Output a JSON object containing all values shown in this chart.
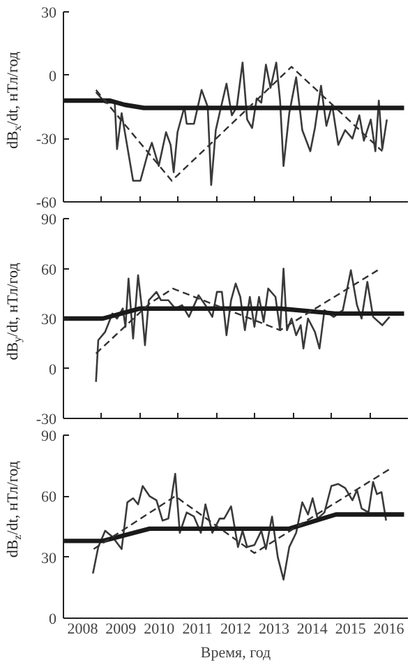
{
  "chart_data": [
    {
      "type": "line",
      "ylabel": "dB$_{x}$/dt, нТл/год",
      "xlim": [
        2008,
        2017
      ],
      "ylim": [
        -60,
        30
      ],
      "yticks": [
        -60,
        -30,
        0,
        30
      ],
      "xticks": [
        {
          "value": 2009,
          "label": null
        },
        {
          "value": 2010,
          "label": null
        },
        {
          "value": 2011,
          "label": null
        },
        {
          "value": 2012,
          "label": null
        },
        {
          "value": 2013,
          "label": null
        },
        {
          "value": 2014,
          "label": null
        },
        {
          "value": 2015,
          "label": null
        },
        {
          "value": 2016,
          "label": null
        }
      ],
      "tick_labels": "y",
      "grid": false,
      "series": [
        {
          "color": "#3a3a3a",
          "line_style": "solid",
          "x": [
            2008.85,
            2009.09,
            2009.34,
            2009.4,
            2009.52,
            2009.82,
            2010.01,
            2010.19,
            2010.31,
            2010.49,
            2010.68,
            2010.8,
            2010.88,
            2010.98,
            2011.16,
            2011.22,
            2011.41,
            2011.61,
            2011.77,
            2011.86,
            2011.98,
            2012.08,
            2012.26,
            2012.4,
            2012.53,
            2012.68,
            2012.8,
            2012.93,
            2013.05,
            2013.17,
            2013.29,
            2013.41,
            2013.56,
            2013.66,
            2013.75,
            2013.9,
            2014.08,
            2014.24,
            2014.45,
            2014.57,
            2014.73,
            2014.87,
            2015.02,
            2015.18,
            2015.36,
            2015.55,
            2015.73,
            2015.85,
            2016.03,
            2016.15,
            2016.24,
            2016.33,
            2016.45
          ],
          "values": [
            -8,
            -13,
            -13,
            -35,
            -18,
            -50,
            -50,
            -38,
            -32,
            -43,
            -27,
            -33,
            -46,
            -27,
            -15,
            -23,
            -23,
            -7,
            -15,
            -52,
            -26,
            -18,
            -4,
            -19,
            -15,
            6,
            -21,
            -25,
            -11,
            -13,
            5,
            -6,
            6,
            -12,
            -43,
            -18,
            -1,
            -26,
            -36,
            -25,
            -5,
            -24,
            -14,
            -33,
            -26,
            -30,
            -19,
            -31,
            -21,
            -36,
            -12,
            -35,
            -21
          ]
        },
        {
          "color": "#1a1a1a",
          "line_style": "solid",
          "x": [
            2008.0,
            2009.2,
            2009.6,
            2010.1,
            2016.9
          ],
          "values": [
            -12,
            -12,
            -14,
            -15.5,
            -15.5
          ]
        },
        {
          "color": "#333333",
          "line_style": "dashed",
          "x": [
            2008.85,
            2010.83,
            2013.96,
            2016.33
          ],
          "values": [
            -7,
            -50,
            4,
            -36
          ]
        }
      ]
    },
    {
      "type": "line",
      "ylabel": "dB$_{y}$/dt, нТл/год",
      "xlim": [
        2008,
        2017
      ],
      "ylim": [
        -30,
        90
      ],
      "yticks": [
        -30,
        0,
        30,
        60,
        90
      ],
      "xticks": [
        {
          "value": 2009,
          "label": null
        },
        {
          "value": 2010,
          "label": null
        },
        {
          "value": 2011,
          "label": null
        },
        {
          "value": 2012,
          "label": null
        },
        {
          "value": 2013,
          "label": null
        },
        {
          "value": 2014,
          "label": null
        },
        {
          "value": 2015,
          "label": null
        },
        {
          "value": 2016,
          "label": null
        }
      ],
      "tick_labels": "y",
      "grid": false,
      "series": [
        {
          "color": "#3a3a3a",
          "line_style": "solid",
          "x": [
            2008.85,
            2008.91,
            2009.09,
            2009.28,
            2009.4,
            2009.55,
            2009.62,
            2009.7,
            2009.82,
            2009.95,
            2010.04,
            2010.13,
            2010.23,
            2010.43,
            2010.55,
            2010.74,
            2010.92,
            2011.1,
            2011.28,
            2011.53,
            2011.71,
            2011.89,
            2012.01,
            2012.14,
            2012.26,
            2012.38,
            2012.5,
            2012.62,
            2012.74,
            2012.87,
            2012.99,
            2013.11,
            2013.23,
            2013.35,
            2013.54,
            2013.66,
            2013.75,
            2013.84,
            2013.96,
            2014.08,
            2014.2,
            2014.27,
            2014.39,
            2014.57,
            2014.69,
            2014.82,
            2015.06,
            2015.3,
            2015.51,
            2015.67,
            2015.79,
            2015.94,
            2016.09,
            2016.33,
            2016.52
          ],
          "values": [
            -8,
            17,
            22,
            33,
            30,
            36,
            25,
            54,
            18,
            56,
            38,
            14,
            41,
            46,
            41,
            41,
            36,
            38,
            31,
            44,
            38,
            31,
            46,
            46,
            20,
            41,
            51,
            43,
            23,
            43,
            25,
            43,
            28,
            48,
            43,
            23,
            60,
            23,
            30,
            20,
            26,
            12,
            30,
            22,
            12,
            35,
            31,
            35,
            59,
            38,
            30,
            52,
            31,
            26,
            31
          ]
        },
        {
          "color": "#1a1a1a",
          "line_style": "solid",
          "x": [
            2008.0,
            2009.03,
            2010.0,
            2013.66,
            2015.1,
            2016.9
          ],
          "values": [
            30,
            30,
            36,
            36,
            33,
            33
          ]
        },
        {
          "color": "#333333",
          "line_style": "dashed",
          "x": [
            2008.85,
            2010.25,
            2010.86,
            2013.66,
            2016.21
          ],
          "values": [
            9,
            39,
            48,
            23,
            59
          ]
        }
      ]
    },
    {
      "type": "line",
      "xlabel": "Время, год",
      "ylabel": "dB$_{z}$/dt, нТл/год",
      "xlim": [
        2008,
        2017
      ],
      "ylim": [
        0,
        90
      ],
      "yticks": [
        0,
        30,
        60,
        90
      ],
      "xticks": [
        {
          "value": 2008.5,
          "label": "2008"
        },
        {
          "value": 2009.5,
          "label": "2009"
        },
        {
          "value": 2010.5,
          "label": "2010"
        },
        {
          "value": 2011.5,
          "label": "2011"
        },
        {
          "value": 2012.5,
          "label": "2012"
        },
        {
          "value": 2013.5,
          "label": "2013"
        },
        {
          "value": 2014.5,
          "label": "2014"
        },
        {
          "value": 2015.5,
          "label": "2015"
        },
        {
          "value": 2016.5,
          "label": "2016"
        }
      ],
      "grid": false,
      "series": [
        {
          "color": "#3a3a3a",
          "line_style": "solid",
          "x": [
            2008.77,
            2008.91,
            2009.09,
            2009.28,
            2009.52,
            2009.67,
            2009.82,
            2009.95,
            2010.07,
            2010.25,
            2010.43,
            2010.59,
            2010.74,
            2010.92,
            2011.04,
            2011.22,
            2011.41,
            2011.59,
            2011.71,
            2011.89,
            2012.08,
            2012.2,
            2012.38,
            2012.56,
            2012.68,
            2012.8,
            2012.99,
            2013.17,
            2013.29,
            2013.45,
            2013.6,
            2013.75,
            2013.9,
            2014.08,
            2014.24,
            2014.39,
            2014.51,
            2014.64,
            2014.82,
            2015.0,
            2015.18,
            2015.36,
            2015.55,
            2015.67,
            2015.79,
            2015.97,
            2016.09,
            2016.19,
            2016.31,
            2016.43
          ],
          "values": [
            22,
            35,
            43,
            40,
            34,
            57,
            59,
            56,
            65,
            60,
            58,
            48,
            49,
            71,
            42,
            52,
            50,
            42,
            56,
            42,
            49,
            49,
            55,
            35,
            43,
            35,
            36,
            43,
            34,
            50,
            30,
            19,
            35,
            42,
            57,
            51,
            59,
            49,
            52,
            65,
            66,
            64,
            58,
            63,
            54,
            52,
            67,
            61,
            62,
            48
          ]
        },
        {
          "color": "#1a1a1a",
          "line_style": "solid",
          "x": [
            2008.0,
            2009.03,
            2010.25,
            2013.9,
            2015.12,
            2016.9
          ],
          "values": [
            38,
            38,
            44,
            44,
            51,
            51
          ]
        },
        {
          "color": "#333333",
          "line_style": "dashed",
          "x": [
            2008.79,
            2010.92,
            2012.99,
            2016.58
          ],
          "values": [
            34,
            60,
            32,
            74
          ]
        }
      ]
    }
  ]
}
